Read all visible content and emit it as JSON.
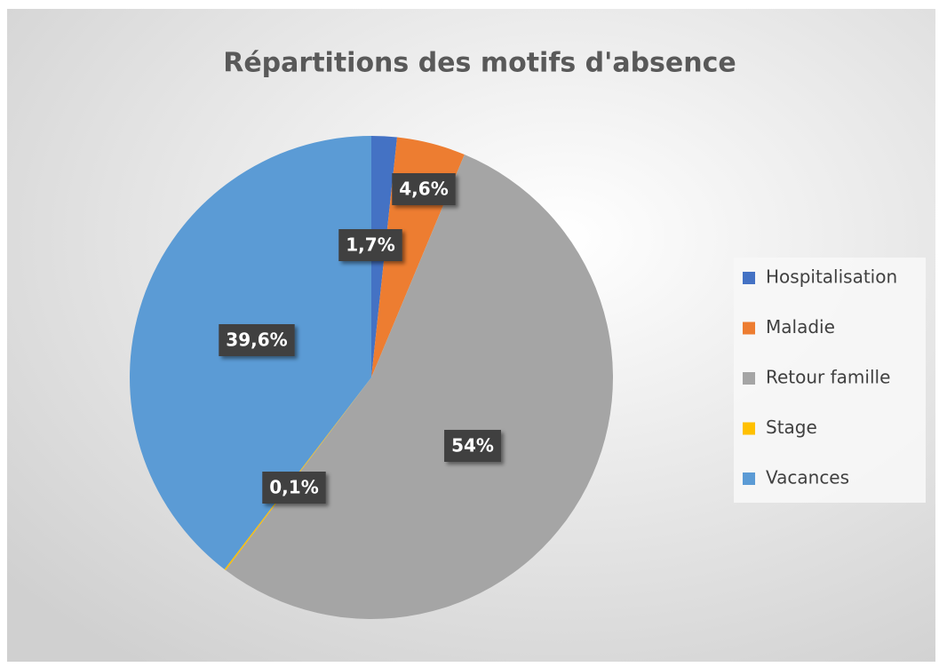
{
  "chart_data": {
    "type": "pie",
    "title": "Répartitions des motifs d'absence",
    "categories": [
      "Hospitalisation",
      "Maladie",
      "Retour famille",
      "Stage",
      "Vacances"
    ],
    "values": [
      1.7,
      4.6,
      54,
      0.1,
      39.6
    ],
    "value_labels": [
      "1,7%",
      "4,6%",
      "54%",
      "0,1%",
      "39,6%"
    ],
    "colors": [
      "#4472c4",
      "#ed7d31",
      "#a5a5a5",
      "#ffc000",
      "#5b9bd5"
    ],
    "legend": "right"
  }
}
